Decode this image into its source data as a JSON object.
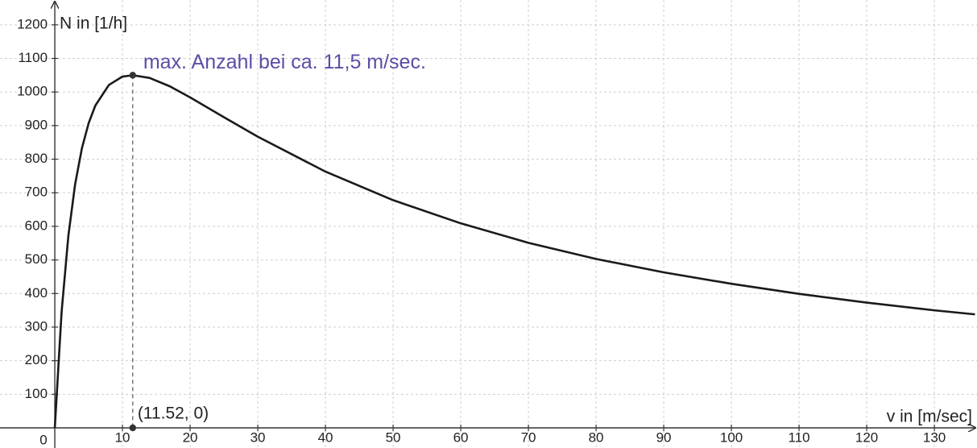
{
  "chart_data": {
    "type": "line",
    "x_label": "v in [m/sec]",
    "y_label": "N in [1/h]",
    "annotation": "max. Anzahl bei ca. 11,5 m/sec.",
    "annotation_color": "#5a4ea6",
    "xlim": [
      -8.1,
      136.3
    ],
    "ylim": [
      -60,
      1274
    ],
    "xticks": [
      0,
      10,
      20,
      30,
      40,
      50,
      60,
      70,
      80,
      90,
      100,
      110,
      120,
      130
    ],
    "yticks": [
      100,
      200,
      300,
      400,
      500,
      600,
      700,
      800,
      900,
      1000,
      1100,
      1200
    ],
    "grid": true,
    "series": [
      {
        "color": "#1a1a1a",
        "x": [
          0,
          1,
          2,
          3,
          4,
          5,
          6,
          8,
          10,
          11.52,
          14,
          17,
          20,
          25,
          30,
          40,
          50,
          60,
          70,
          80,
          90,
          100,
          110,
          120,
          130,
          136
        ],
        "values": [
          0,
          344,
          571,
          725,
          832,
          907,
          960,
          1021,
          1046,
          1050,
          1042,
          1017,
          984,
          925,
          867,
          763,
          678,
          609,
          551,
          503,
          463,
          429,
          399,
          373,
          350,
          338
        ]
      }
    ],
    "points": [
      {
        "x": 11.52,
        "y": 1050
      },
      {
        "x": 11.52,
        "y": 0,
        "label": "(11.52, 0)"
      }
    ],
    "point_color": "#333333"
  }
}
